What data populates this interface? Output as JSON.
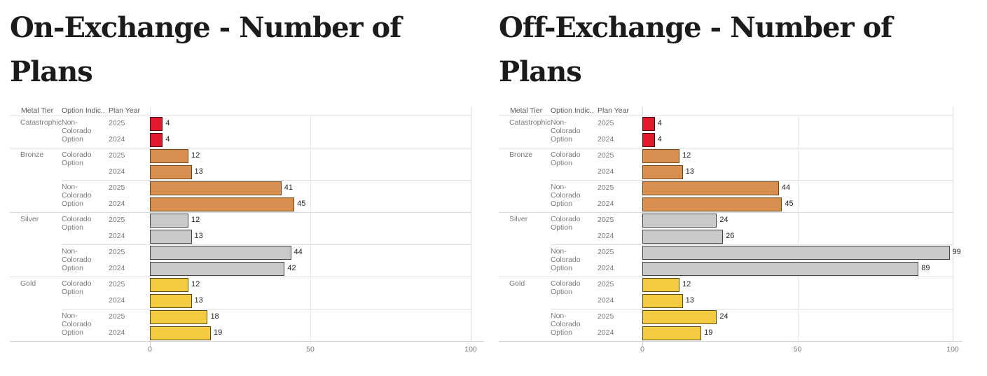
{
  "chart_data": [
    {
      "type": "bar",
      "orientation": "horizontal",
      "title": "On-Exchange - Number of Plans",
      "column_headers": [
        "Metal Tier",
        "Option Indic..",
        "Plan Year"
      ],
      "x_axis": {
        "min": 0,
        "max": 100,
        "ticks": [
          0,
          50,
          100
        ],
        "grid": true
      },
      "tiers": [
        {
          "tier": "Catastrophic",
          "options": [
            {
              "option": "Non-Colorado Option",
              "years": [
                {
                  "year": "2025",
                  "value": 4
                },
                {
                  "year": "2024",
                  "value": 4
                }
              ]
            }
          ]
        },
        {
          "tier": "Bronze",
          "options": [
            {
              "option": "Colorado Option",
              "years": [
                {
                  "year": "2025",
                  "value": 12
                },
                {
                  "year": "2024",
                  "value": 13
                }
              ]
            },
            {
              "option": "Non-Colorado Option",
              "years": [
                {
                  "year": "2025",
                  "value": 41
                },
                {
                  "year": "2024",
                  "value": 45
                }
              ]
            }
          ]
        },
        {
          "tier": "Silver",
          "options": [
            {
              "option": "Colorado Option",
              "years": [
                {
                  "year": "2025",
                  "value": 12
                },
                {
                  "year": "2024",
                  "value": 13
                }
              ]
            },
            {
              "option": "Non-Colorado Option",
              "years": [
                {
                  "year": "2025",
                  "value": 44
                },
                {
                  "year": "2024",
                  "value": 42
                }
              ]
            }
          ]
        },
        {
          "tier": "Gold",
          "options": [
            {
              "option": "Colorado Option",
              "years": [
                {
                  "year": "2025",
                  "value": 12
                },
                {
                  "year": "2024",
                  "value": 13
                }
              ]
            },
            {
              "option": "Non-Colorado Option",
              "years": [
                {
                  "year": "2025",
                  "value": 18
                },
                {
                  "year": "2024",
                  "value": 19
                }
              ]
            }
          ]
        }
      ]
    },
    {
      "type": "bar",
      "orientation": "horizontal",
      "title": "Off-Exchange - Number of Plans",
      "column_headers": [
        "Metal Tier",
        "Option Indic..",
        "Plan Year"
      ],
      "x_axis": {
        "min": 0,
        "max": 100,
        "ticks": [
          0,
          50,
          100
        ],
        "grid": true
      },
      "tiers": [
        {
          "tier": "Catastrophic",
          "options": [
            {
              "option": "Non-Colorado Option",
              "years": [
                {
                  "year": "2025",
                  "value": 4
                },
                {
                  "year": "2024",
                  "value": 4
                }
              ]
            }
          ]
        },
        {
          "tier": "Bronze",
          "options": [
            {
              "option": "Colorado Option",
              "years": [
                {
                  "year": "2025",
                  "value": 12
                },
                {
                  "year": "2024",
                  "value": 13
                }
              ]
            },
            {
              "option": "Non-Colorado Option",
              "years": [
                {
                  "year": "2025",
                  "value": 44
                },
                {
                  "year": "2024",
                  "value": 45
                }
              ]
            }
          ]
        },
        {
          "tier": "Silver",
          "options": [
            {
              "option": "Colorado Option",
              "years": [
                {
                  "year": "2025",
                  "value": 24
                },
                {
                  "year": "2024",
                  "value": 26
                }
              ]
            },
            {
              "option": "Non-Colorado Option",
              "years": [
                {
                  "year": "2025",
                  "value": 99
                },
                {
                  "year": "2024",
                  "value": 89
                }
              ]
            }
          ]
        },
        {
          "tier": "Gold",
          "options": [
            {
              "option": "Colorado Option",
              "years": [
                {
                  "year": "2025",
                  "value": 12
                },
                {
                  "year": "2024",
                  "value": 13
                }
              ]
            },
            {
              "option": "Non-Colorado Option",
              "years": [
                {
                  "year": "2025",
                  "value": 24
                },
                {
                  "year": "2024",
                  "value": 19
                }
              ]
            }
          ]
        }
      ]
    }
  ],
  "colors": {
    "Catastrophic": {
      "fill": "#e2182d",
      "border": "#4a0c12"
    },
    "Bronze": {
      "fill": "#d78e4e",
      "border": "#6f4417"
    },
    "Silver": {
      "fill": "#c9c9c9",
      "border": "#434343"
    },
    "Gold": {
      "fill": "#f2cb41",
      "border": "#5a4c15"
    }
  }
}
